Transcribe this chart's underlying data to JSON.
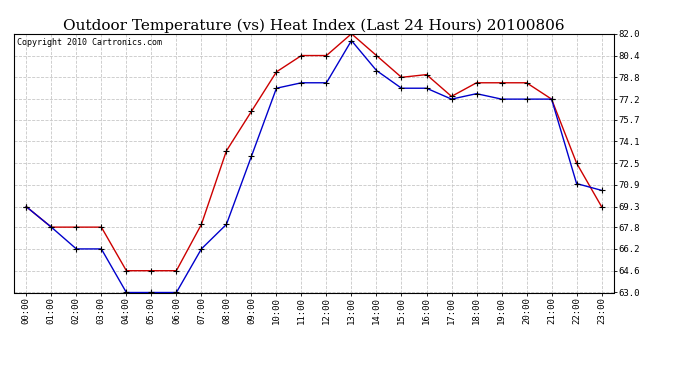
{
  "title": "Outdoor Temperature (vs) Heat Index (Last 24 Hours) 20100806",
  "copyright": "Copyright 2010 Cartronics.com",
  "hours": [
    "00:00",
    "01:00",
    "02:00",
    "03:00",
    "04:00",
    "05:00",
    "06:00",
    "07:00",
    "08:00",
    "09:00",
    "10:00",
    "11:00",
    "12:00",
    "13:00",
    "14:00",
    "15:00",
    "16:00",
    "17:00",
    "18:00",
    "19:00",
    "20:00",
    "21:00",
    "22:00",
    "23:00"
  ],
  "heat_index": [
    69.3,
    67.8,
    67.8,
    67.8,
    64.6,
    64.6,
    64.6,
    68.0,
    73.4,
    76.3,
    79.2,
    80.4,
    80.4,
    82.0,
    80.4,
    78.8,
    79.0,
    77.4,
    78.4,
    78.4,
    78.4,
    77.2,
    72.5,
    69.3
  ],
  "outdoor_temp": [
    69.3,
    67.8,
    66.2,
    66.2,
    63.0,
    63.0,
    63.0,
    66.2,
    68.0,
    73.0,
    78.0,
    78.4,
    78.4,
    81.5,
    79.3,
    78.0,
    78.0,
    77.2,
    77.6,
    77.2,
    77.2,
    77.2,
    71.0,
    70.5
  ],
  "ylim": [
    63.0,
    82.0
  ],
  "yticks": [
    63.0,
    64.6,
    66.2,
    67.8,
    69.3,
    70.9,
    72.5,
    74.1,
    75.7,
    77.2,
    78.8,
    80.4,
    82.0
  ],
  "heat_index_color": "#cc0000",
  "outdoor_temp_color": "#0000cc",
  "bg_color": "#ffffff",
  "grid_color": "#c8c8c8",
  "title_fontsize": 11,
  "copyright_fontsize": 6,
  "tick_fontsize": 6.5
}
